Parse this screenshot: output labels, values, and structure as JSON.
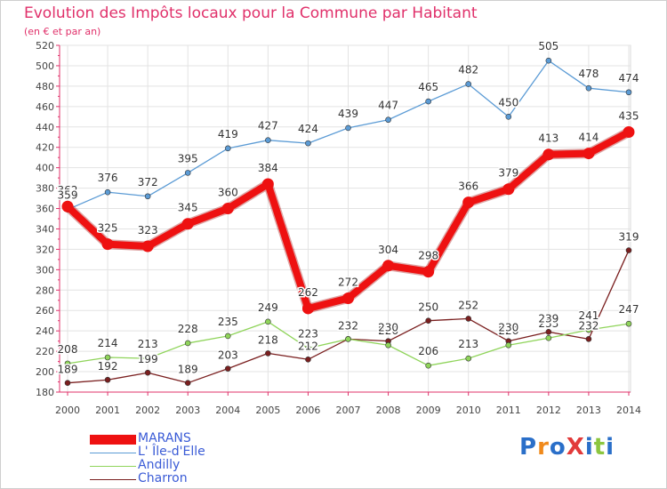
{
  "chart_data": {
    "type": "line",
    "title": "Evolution des Impôts locaux pour la Commune par Habitant",
    "subtitle": "(en € et par an)",
    "x": [
      "2000",
      "2001",
      "2002",
      "2003",
      "2004",
      "2005",
      "2006",
      "2007",
      "2008",
      "2009",
      "2010",
      "2011",
      "2012",
      "2013",
      "2014"
    ],
    "ylim": [
      180,
      520
    ],
    "yticks": [
      180,
      200,
      220,
      240,
      260,
      280,
      300,
      320,
      340,
      360,
      380,
      400,
      420,
      440,
      460,
      480,
      500,
      520
    ],
    "grid": true,
    "legend_position": "bottom-left",
    "series": [
      {
        "name": "MARANS",
        "color": "#ee1111",
        "values": [
          362,
          325,
          323,
          345,
          360,
          384,
          262,
          272,
          304,
          298,
          366,
          379,
          413,
          414,
          435
        ]
      },
      {
        "name": "L' Île-d'Elle",
        "color": "#5b9bd5",
        "values": [
          359,
          376,
          372,
          395,
          419,
          427,
          424,
          439,
          447,
          465,
          482,
          450,
          505,
          478,
          474
        ]
      },
      {
        "name": "Andilly",
        "color": "#8fd45a",
        "values": [
          208,
          214,
          213,
          228,
          235,
          249,
          223,
          232,
          226,
          206,
          213,
          226,
          233,
          241,
          247
        ]
      },
      {
        "name": "Charron",
        "color": "#7a1f1f",
        "values": [
          189,
          192,
          199,
          189,
          203,
          218,
          212,
          232,
          230,
          250,
          252,
          230,
          239,
          232,
          319
        ]
      }
    ]
  },
  "logo": {
    "text": "ProXiti",
    "colors": [
      "#2a6fc9",
      "#f08a1c",
      "#2a6fc9",
      "#e23a3a",
      "#2a6fc9",
      "#8cc63f",
      "#2a6fc9"
    ]
  }
}
